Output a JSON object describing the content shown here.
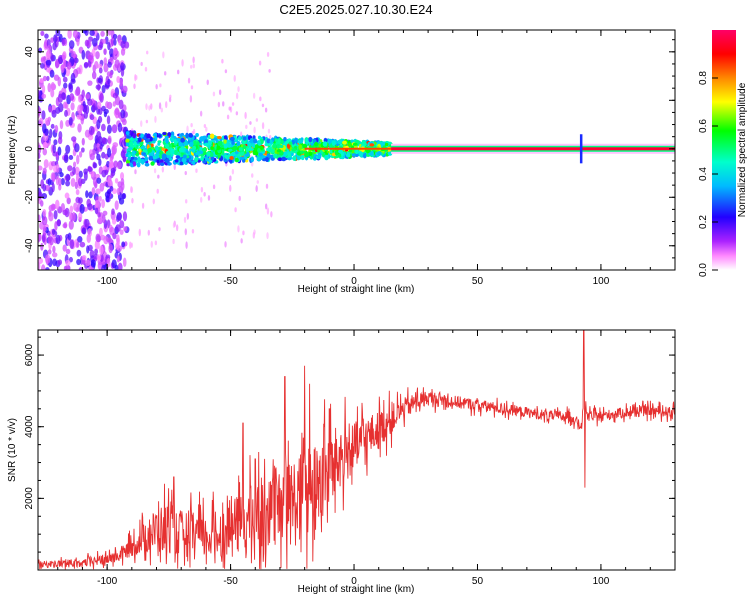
{
  "title": "C2E5.2025.027.10.30.E24",
  "colors": {
    "line": "#e63030",
    "frame": "#000000"
  },
  "chart_data": [
    {
      "type": "heatmap",
      "xlabel": "Height of straight line (km)",
      "ylabel": "Frequency (Hz)",
      "xlim": [
        -128,
        130
      ],
      "ylim": [
        -50,
        49
      ],
      "x_ticks": [
        -100,
        -50,
        0,
        50,
        100
      ],
      "x_tick_labels": [
        "-100",
        "-50",
        "0",
        "50",
        "100"
      ],
      "y_ticks": [
        -40,
        -20,
        0,
        20,
        40
      ],
      "y_tick_labels": [
        "-40",
        "-20",
        "0",
        "20",
        "40"
      ],
      "colorbar": {
        "label": "Normalized spectral amplitude",
        "range": [
          0,
          1
        ],
        "ticks": [
          0.0,
          0.2,
          0.4,
          0.6,
          0.8
        ],
        "tick_labels": [
          "0.0",
          "0.2",
          "0.4",
          "0.6",
          "0.8"
        ],
        "stops": [
          "#ffffff",
          "#ff66ff",
          "#9900ff",
          "#0000ff",
          "#00ffff",
          "#00ff00",
          "#ffff00",
          "#ff8800",
          "#ff0000",
          "#ff0066"
        ]
      },
      "features": [
        {
          "x_range": [
            -128,
            -92
          ],
          "y_range": [
            -50,
            49
          ],
          "level": 0.15,
          "desc": "broadband scatter"
        },
        {
          "x_range": [
            -92,
            15
          ],
          "y_range": [
            -6,
            6
          ],
          "level": 0.5,
          "desc": "narrowing band around 0 Hz"
        },
        {
          "x_range": [
            15,
            130
          ],
          "y_center": 0,
          "level": 0.95,
          "desc": "single narrow line at 0 Hz"
        },
        {
          "x": 92,
          "y_range": [
            -6,
            6
          ],
          "level": 0.25,
          "desc": "short vertical spike"
        }
      ]
    },
    {
      "type": "line",
      "xlabel": "Height of straight line (km)",
      "ylabel": "SNR (10 * v/v)",
      "xlim": [
        -128,
        130
      ],
      "ylim": [
        0,
        6700
      ],
      "x_ticks": [
        -100,
        -50,
        0,
        50,
        100
      ],
      "x_tick_labels": [
        "-100",
        "-50",
        "0",
        "50",
        "100"
      ],
      "y_ticks": [
        2000,
        4000,
        6000
      ],
      "y_tick_labels": [
        "2000",
        "4000",
        "6000"
      ],
      "x": [
        -128,
        -110,
        -100,
        -95,
        -90,
        -85,
        -80,
        -75,
        -70,
        -65,
        -60,
        -55,
        -50,
        -45,
        -40,
        -35,
        -30,
        -25,
        -20,
        -15,
        -10,
        -5,
        0,
        5,
        10,
        15,
        20,
        25,
        30,
        40,
        50,
        60,
        70,
        80,
        88,
        92,
        93,
        95,
        100,
        110,
        120,
        130
      ],
      "y": [
        150,
        200,
        300,
        400,
        650,
        900,
        1100,
        1200,
        1000,
        1050,
        900,
        1000,
        1200,
        1300,
        1500,
        1700,
        1600,
        1900,
        2000,
        2300,
        2800,
        3200,
        3400,
        3700,
        3900,
        4200,
        4500,
        4700,
        4800,
        4700,
        4600,
        4500,
        4400,
        4300,
        4300,
        4000,
        4500,
        4300,
        4300,
        4400,
        4450,
        4400
      ],
      "noise_amplitude": [
        150,
        200,
        250,
        300,
        450,
        700,
        1100,
        1200,
        1100,
        1100,
        1000,
        1100,
        1300,
        1400,
        1700,
        1800,
        1900,
        2100,
        2300,
        2100,
        1800,
        1500,
        1200,
        1000,
        900,
        700,
        500,
        400,
        350,
        300,
        280,
        260,
        250,
        250,
        250,
        250,
        250,
        250,
        250,
        250,
        250,
        250
      ],
      "spikes": [
        {
          "x": -73,
          "y": 2600
        },
        {
          "x": -45,
          "y": 4100
        },
        {
          "x": -40,
          "y": 3100
        },
        {
          "x": -28,
          "y": 5400
        },
        {
          "x": -20,
          "y": 5700
        },
        {
          "x": -18,
          "y": 5200
        },
        {
          "x": -10,
          "y": 4500
        },
        {
          "x": 93,
          "y": 6700
        },
        {
          "x": 93.5,
          "y": 2300
        }
      ]
    }
  ]
}
